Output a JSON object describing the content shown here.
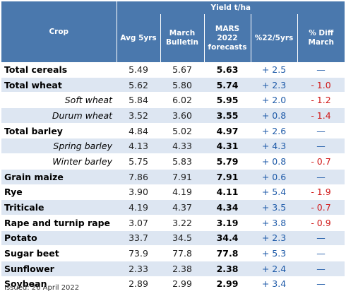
{
  "header": {
    "group_label": "Yield t/ha",
    "crop": "Crop",
    "avg5": "Avg 5yrs",
    "march_bulletin": "March Bulletin",
    "mars_forecast": "MARS 2022 forecasts",
    "pct22_5": "%22/5yrs",
    "pct_diff_march": "% Diff March"
  },
  "rows": [
    {
      "crop": "Total cereals",
      "avg": "5.49",
      "march": "5.67",
      "forecast": "5.63",
      "pct": "+ 2.5",
      "diff": "—",
      "diff_type": "dash",
      "sub": false
    },
    {
      "crop": "Total wheat",
      "avg": "5.62",
      "march": "5.80",
      "forecast": "5.74",
      "pct": "+ 2.3",
      "diff": "- 1.0",
      "diff_type": "neg",
      "sub": false
    },
    {
      "crop": "Soft wheat",
      "avg": "5.84",
      "march": "6.02",
      "forecast": "5.95",
      "pct": "+ 2.0",
      "diff": "- 1.2",
      "diff_type": "neg",
      "sub": true
    },
    {
      "crop": "Durum wheat",
      "avg": "3.52",
      "march": "3.60",
      "forecast": "3.55",
      "pct": "+ 0.8",
      "diff": "- 1.4",
      "diff_type": "neg",
      "sub": true
    },
    {
      "crop": "Total barley",
      "avg": "4.84",
      "march": "5.02",
      "forecast": "4.97",
      "pct": "+ 2.6",
      "diff": "—",
      "diff_type": "dash",
      "sub": false
    },
    {
      "crop": "Spring barley",
      "avg": "4.13",
      "march": "4.33",
      "forecast": "4.31",
      "pct": "+ 4.3",
      "diff": "—",
      "diff_type": "dash",
      "sub": true
    },
    {
      "crop": "Winter barley",
      "avg": "5.75",
      "march": "5.83",
      "forecast": "5.79",
      "pct": "+ 0.8",
      "diff": "- 0.7",
      "diff_type": "neg",
      "sub": true
    },
    {
      "crop": "Grain maize",
      "avg": "7.86",
      "march": "7.91",
      "forecast": "7.91",
      "pct": "+ 0.6",
      "diff": "—",
      "diff_type": "dash",
      "sub": false
    },
    {
      "crop": "Rye",
      "avg": "3.90",
      "march": "4.19",
      "forecast": "4.11",
      "pct": "+ 5.4",
      "diff": "- 1.9",
      "diff_type": "neg",
      "sub": false
    },
    {
      "crop": "Triticale",
      "avg": "4.19",
      "march": "4.37",
      "forecast": "4.34",
      "pct": "+ 3.5",
      "diff": "- 0.7",
      "diff_type": "neg",
      "sub": false
    },
    {
      "crop": "Rape and turnip rape",
      "avg": "3.07",
      "march": "3.22",
      "forecast": "3.19",
      "pct": "+ 3.8",
      "diff": "- 0.9",
      "diff_type": "neg",
      "sub": false
    },
    {
      "crop": "Potato",
      "avg": "33.7",
      "march": "34.5",
      "forecast": "34.4",
      "pct": "+ 2.3",
      "diff": "—",
      "diff_type": "dash",
      "sub": false
    },
    {
      "crop": "Sugar beet",
      "avg": "73.9",
      "march": "77.8",
      "forecast": "77.8",
      "pct": "+ 5.3",
      "diff": "—",
      "diff_type": "dash",
      "sub": false
    },
    {
      "crop": "Sunflower",
      "avg": "2.33",
      "march": "2.38",
      "forecast": "2.38",
      "pct": "+ 2.4",
      "diff": "—",
      "diff_type": "dash",
      "sub": false
    },
    {
      "crop": "Soybean",
      "avg": "2.89",
      "march": "2.99",
      "forecast": "2.99",
      "pct": "+ 3.4",
      "diff": "—",
      "diff_type": "dash",
      "sub": false
    }
  ],
  "footer": {
    "issued": "Issued: 26 April 2022"
  },
  "colors": {
    "header_bg": "#4a78ad",
    "row_stripe": "#dde6f2",
    "positive_text": "#1e5aa8",
    "negative_text": "#d01818"
  }
}
